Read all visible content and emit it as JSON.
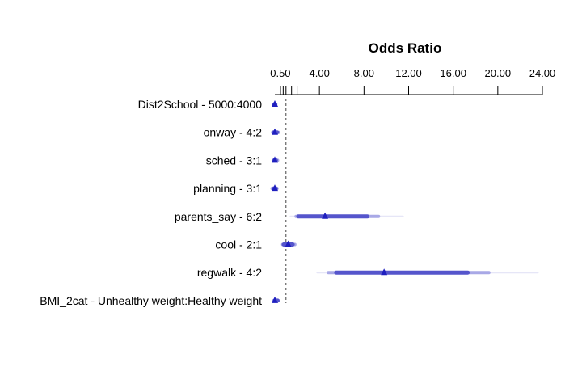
{
  "chart_data": {
    "type": "forest",
    "title": "Odds Ratio",
    "xaxis": {
      "position": "top",
      "range": [
        0,
        24
      ],
      "major_ticks": [
        0.5,
        4,
        8,
        12,
        16,
        20,
        24
      ],
      "major_tick_labels": [
        "0.50",
        "4.00",
        "8.00",
        "12.00",
        "16.00",
        "20.00",
        "24.00"
      ],
      "minor_ticks": [
        0.5,
        0.75,
        1,
        1.5,
        2
      ]
    },
    "reference_line": 1,
    "marker_color": "#1f1fbf",
    "band_colors": [
      "#e6e6f7",
      "#a8a8e6",
      "#5555cc"
    ],
    "rows": [
      {
        "label": "Dist2School - 5000:4000",
        "or": 0.0,
        "ci": [
          [
            -0.05,
            0.05
          ]
        ]
      },
      {
        "label": "onway - 4:2",
        "or": 0.0,
        "ci": [
          [
            -0.2,
            0.35
          ],
          [
            -0.1,
            0.2
          ]
        ]
      },
      {
        "label": "sched - 3:1",
        "or": 0.0,
        "ci": [
          [
            -0.15,
            0.25
          ],
          [
            -0.05,
            0.1
          ]
        ]
      },
      {
        "label": "planning - 3:1",
        "or": 0.0,
        "ci": [
          [
            -0.25,
            0.2
          ],
          [
            -0.1,
            0.1
          ]
        ]
      },
      {
        "label": "parents_say - 6:2",
        "or": 4.5,
        "ci": [
          [
            1.4,
            11.5
          ],
          [
            1.9,
            9.3
          ],
          [
            2.1,
            8.3
          ]
        ]
      },
      {
        "label": "cool - 2:1",
        "or": 1.2,
        "ci": [
          [
            0.7,
            1.8
          ],
          [
            0.8,
            1.6
          ]
        ]
      },
      {
        "label": "regwalk - 4:2",
        "or": 9.8,
        "ci": [
          [
            3.8,
            23.6
          ],
          [
            4.8,
            19.2
          ],
          [
            5.5,
            17.3
          ]
        ]
      },
      {
        "label": "BMI_2cat - Unhealthy weight:Healthy weight",
        "or": 0.0,
        "ci": [
          [
            -0.1,
            0.3
          ],
          [
            0.0,
            0.25
          ]
        ]
      }
    ]
  }
}
